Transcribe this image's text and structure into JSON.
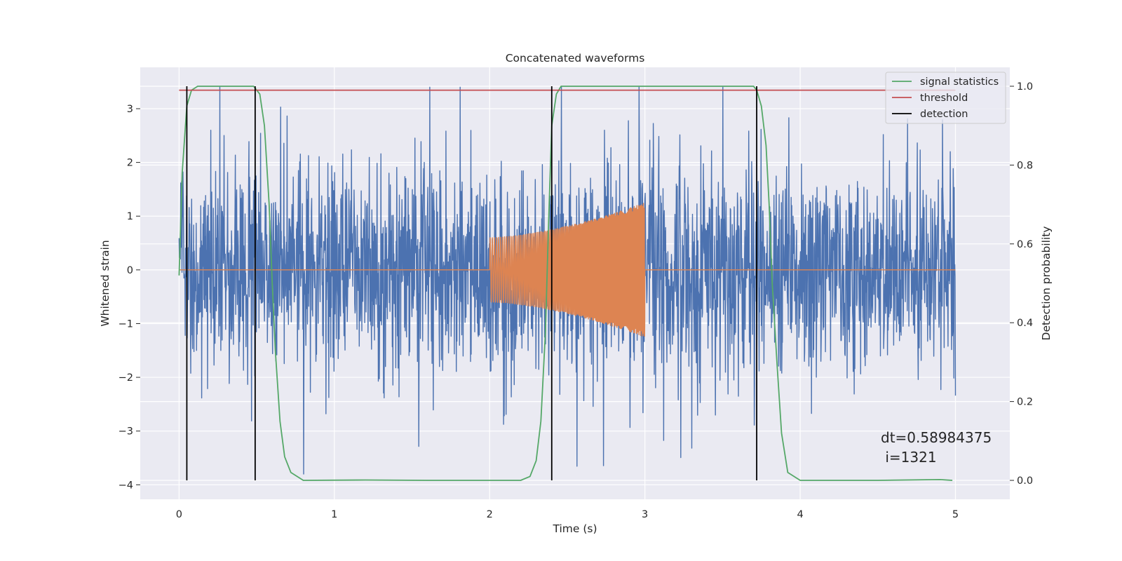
{
  "chart_data": {
    "type": "line",
    "title": "Concatenated waveforms",
    "xlabel": "Time (s)",
    "ylabel": "Whitened strain",
    "y2label": "Detection probability",
    "xlim": [
      -0.25,
      5.35
    ],
    "ylim": [
      -4.27,
      3.77
    ],
    "y2lim": [
      -0.048,
      1.048
    ],
    "x_ticks": [
      0,
      1,
      2,
      3,
      4,
      5
    ],
    "x_tick_labels": [
      "0",
      "1",
      "2",
      "3",
      "4",
      "5"
    ],
    "y_ticks": [
      -4,
      -3,
      -2,
      -1,
      0,
      1,
      2,
      3
    ],
    "y_tick_labels": [
      "−4",
      "−3",
      "−2",
      "−1",
      "0",
      "1",
      "2",
      "3"
    ],
    "y2_ticks": [
      0.0,
      0.2,
      0.4,
      0.6,
      0.8,
      1.0
    ],
    "y2_tick_labels": [
      "0.0",
      "0.2",
      "0.4",
      "0.6",
      "0.8",
      "1.0"
    ],
    "grid": true,
    "legend_position": "top-right",
    "colors": {
      "background": "#eaeaf2",
      "grid": "#ffffff",
      "noise": "#4c72b0",
      "signal": "#dd8452",
      "statistics": "#55a868",
      "threshold": "#c44e52",
      "detection": "#000000"
    },
    "series": [
      {
        "name": "",
        "axis": "left",
        "kind": "whitened noise strain",
        "x_range": [
          0,
          5
        ],
        "envelope": {
          "typical": 1.0,
          "max": 3.4,
          "min": -3.8
        }
      },
      {
        "name": "",
        "axis": "left",
        "kind": "injected chirp",
        "x_range": [
          0,
          5
        ],
        "chirp_x_range": [
          2,
          3
        ],
        "amplitude_start": 0.6,
        "amplitude_end": 1.25
      },
      {
        "name": "signal statistics",
        "axis": "right",
        "x": [
          0.0,
          0.02,
          0.05,
          0.08,
          0.12,
          0.2,
          0.4,
          0.48,
          0.52,
          0.55,
          0.58,
          0.6,
          0.62,
          0.65,
          0.68,
          0.72,
          0.8,
          1.2,
          1.6,
          2.0,
          2.2,
          2.26,
          2.3,
          2.33,
          2.36,
          2.38,
          2.4,
          2.43,
          2.46,
          2.5,
          2.6,
          3.0,
          3.5,
          3.7,
          3.72,
          3.75,
          3.78,
          3.8,
          3.82,
          3.85,
          3.88,
          3.92,
          4.0,
          4.5,
          4.9,
          4.98
        ],
        "y": [
          0.52,
          0.78,
          0.95,
          0.99,
          1.0,
          1.0,
          1.0,
          1.0,
          0.98,
          0.9,
          0.7,
          0.5,
          0.33,
          0.15,
          0.06,
          0.02,
          0.0,
          0.001,
          0.0,
          0.0,
          0.0,
          0.01,
          0.05,
          0.15,
          0.38,
          0.66,
          0.9,
          0.98,
          1.0,
          1.0,
          1.0,
          1.0,
          1.0,
          1.0,
          0.99,
          0.95,
          0.85,
          0.7,
          0.5,
          0.3,
          0.12,
          0.02,
          0.0,
          0.0,
          0.002,
          0.0
        ]
      },
      {
        "name": "threshold",
        "axis": "right",
        "x": [
          0,
          5
        ],
        "y": [
          0.99,
          0.99
        ]
      },
      {
        "name": "detection",
        "axis": "right",
        "x": [
          0.05,
          0.49,
          2.4,
          3.72
        ],
        "y_range": [
          0,
          1
        ]
      }
    ],
    "annotation": {
      "line1": "dt=0.58984375",
      "line2": " i=1321"
    }
  }
}
